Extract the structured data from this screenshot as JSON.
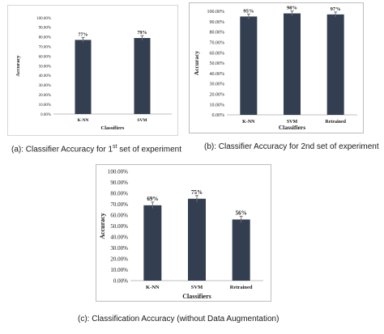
{
  "colors": {
    "bar": "#333f50",
    "errorbar": "#6f6f6f",
    "axis": "#bfbfbf",
    "text": "#1a1a1a"
  },
  "chart_data": [
    {
      "type": "bar",
      "panel": "a",
      "categories": [
        "K-NN",
        "SVM"
      ],
      "values": [
        77,
        79
      ],
      "value_labels": [
        "77%",
        "79%"
      ],
      "ylim": [
        0,
        100
      ],
      "yticks": [
        "0.00%",
        "10.00%",
        "20.00%",
        "30.00%",
        "40.00%",
        "50.00%",
        "60.00%",
        "70.00%",
        "80.00%",
        "90.00%",
        "100.00%"
      ],
      "xlabel": "Classifiers",
      "ylabel": "Accuracy",
      "grid": false,
      "error_bars": true,
      "caption_main": "(a): Classifier Accuracy for 1",
      "caption_sup": "st",
      "caption_tail": " set of experiment"
    },
    {
      "type": "bar",
      "panel": "b",
      "categories": [
        "K-NN",
        "SVM",
        "Retrained"
      ],
      "values": [
        95,
        98,
        97
      ],
      "value_labels": [
        "95%",
        "98%",
        "97%"
      ],
      "ylim": [
        0,
        100
      ],
      "yticks": [
        "0.00%",
        "10.00%",
        "20.00%",
        "30.00%",
        "40.00%",
        "50.00%",
        "60.00%",
        "70.00%",
        "80.00%",
        "90.00%",
        "100.00%"
      ],
      "xlabel": "Classifiers",
      "ylabel": "Accuracy",
      "grid": false,
      "error_bars": true,
      "caption": "(b): Classifier Accuracy for 2nd set of experiment"
    },
    {
      "type": "bar",
      "panel": "c",
      "categories": [
        "K-NN",
        "SVM",
        "Retrained"
      ],
      "values": [
        69,
        75,
        56
      ],
      "value_labels": [
        "69%",
        "75%",
        "56%"
      ],
      "ylim": [
        0,
        100
      ],
      "yticks": [
        "0.00%",
        "10.00%",
        "20.00%",
        "30.00%",
        "40.00%",
        "50.00%",
        "60.00%",
        "70.00%",
        "80.00%",
        "90.00%",
        "100.00%"
      ],
      "xlabel": "Classifiers",
      "ylabel": "Accuracy",
      "grid": false,
      "error_bars": true,
      "caption": "(c): Classification Accuracy (without Data Augmentation)"
    }
  ]
}
